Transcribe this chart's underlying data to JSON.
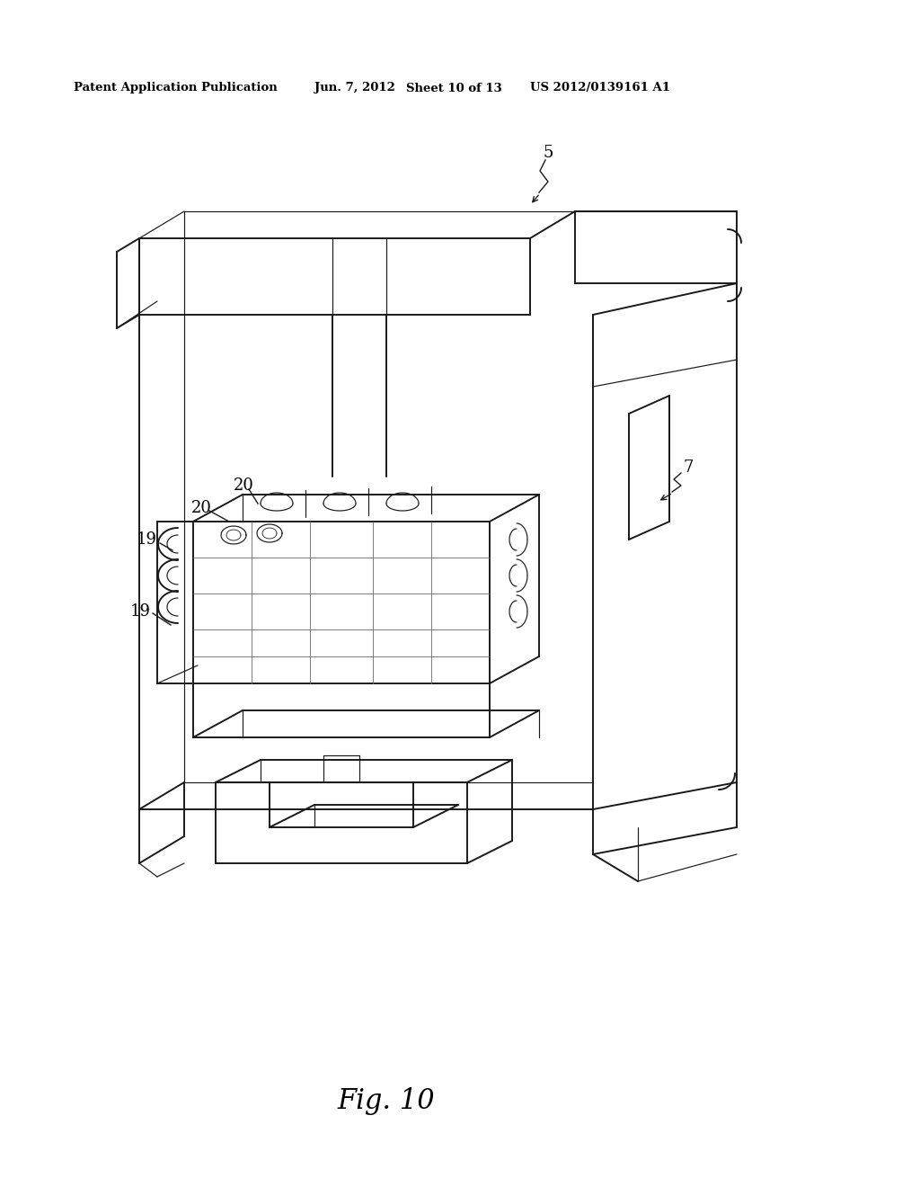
{
  "bg_color": "#ffffff",
  "header_text": "Patent Application Publication",
  "header_date": "Jun. 7, 2012",
  "header_sheet": "Sheet 10 of 13",
  "header_patent": "US 2012/0139161 A1",
  "fig_label": "Fig. 10",
  "page_width": 10.24,
  "page_height": 13.2,
  "lw_main": 1.4,
  "lw_thin": 0.85,
  "lw_light": 0.6,
  "color_main": "#1a1a1a",
  "color_light": "#666666"
}
